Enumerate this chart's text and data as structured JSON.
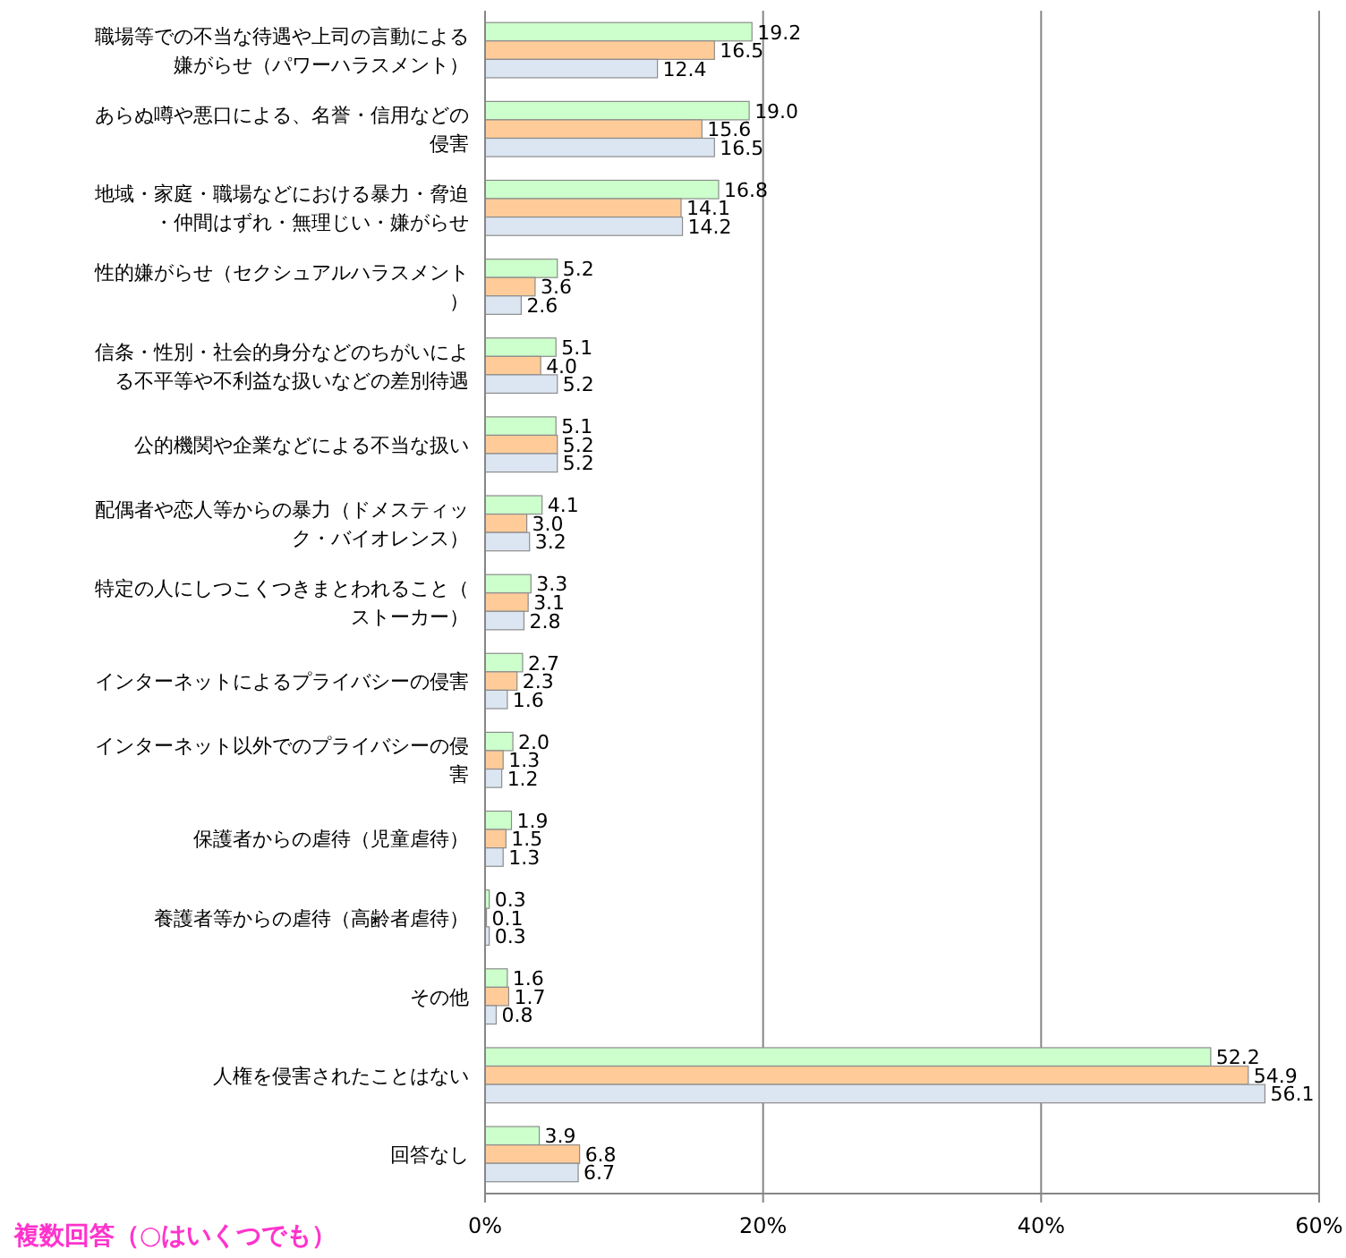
{
  "chart_data": {
    "type": "bar",
    "orientation": "horizontal",
    "categories": [
      "職場等での不当な待遇や上司の言動による嫌がらせ（パワーハラスメント）",
      "あらぬ噂や悪口による、名誉・信用などの侵害",
      "地域・家庭・職場などにおける暴力・脅迫・仲間はずれ・無理じい・嫌がらせ",
      "性的嫌がらせ（セクシュアルハラスメント）",
      "信条・性別・社会的身分などのちがいによる不平等や不利益な扱いなどの差別待遇",
      "公的機関や企業などによる不当な扱い",
      "配偶者や恋人等からの暴力（ドメスティック・バイオレンス）",
      "特定の人にしつこくつきまとわれること（ストーカー）",
      "インターネットによるプライバシーの侵害",
      "インターネット以外でのプライバシーの侵害",
      "保護者からの虐待（児童虐待）",
      "養護者等からの虐待（高齢者虐待）",
      "その他",
      "人権を侵害されたことはない",
      "回答なし"
    ],
    "series": [
      {
        "color": "#ccffcc",
        "values": [
          19.2,
          19.0,
          16.8,
          5.2,
          5.1,
          5.1,
          4.1,
          3.3,
          2.7,
          2.0,
          1.9,
          0.3,
          1.6,
          52.2,
          3.9
        ],
        "value_labels": [
          "19.2",
          "19.0",
          "16.8",
          "5.2",
          "5.1",
          "5.1",
          "4.1",
          "3.3",
          "2.7",
          "2.0",
          "1.9",
          "0.3",
          "1.6",
          "52.2",
          "3.9"
        ]
      },
      {
        "color": "#ffcc99",
        "values": [
          16.5,
          15.6,
          14.1,
          3.6,
          4.0,
          5.2,
          3.0,
          3.1,
          2.3,
          1.3,
          1.5,
          0.1,
          1.7,
          54.9,
          6.8
        ],
        "value_labels": [
          "16.5",
          "15.6",
          "14.1",
          "3.6",
          "4.0",
          "5.2",
          "3.0",
          "3.1",
          "2.3",
          "1.3",
          "1.5",
          "0.1",
          "1.7",
          "54.9",
          "6.8"
        ]
      },
      {
        "color": "#dce6f2",
        "values": [
          12.4,
          16.5,
          14.2,
          2.6,
          5.2,
          5.2,
          3.2,
          2.8,
          1.6,
          1.2,
          1.3,
          0.3,
          0.8,
          56.1,
          6.7
        ],
        "value_labels": [
          "12.4",
          "16.5",
          "14.2",
          "2.6",
          "5.2",
          "5.2",
          "3.2",
          "2.8",
          "1.6",
          "1.2",
          "1.3",
          "0.3",
          "0.8",
          "56.1",
          "6.7"
        ]
      }
    ],
    "xlim": [
      0,
      60
    ],
    "xticks": [
      {
        "value": 0,
        "label": "0%"
      },
      {
        "value": 20,
        "label": "20%"
      },
      {
        "value": 40,
        "label": "40%"
      },
      {
        "value": 60,
        "label": "60%"
      }
    ],
    "grid": "x",
    "annotations": [
      "複数回答（○はいくつでも）"
    ]
  }
}
